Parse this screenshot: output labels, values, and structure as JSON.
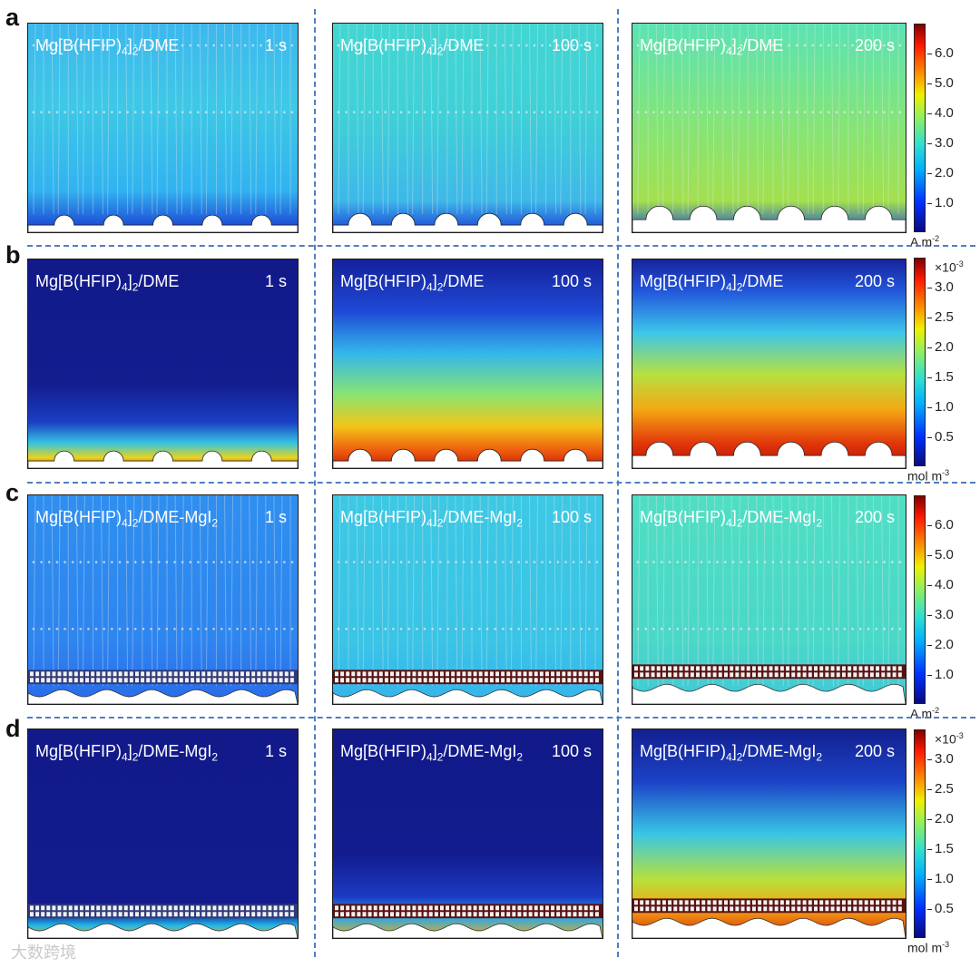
{
  "figure": {
    "rows": [
      {
        "label": "a",
        "field": "current",
        "panels": [
          {
            "title_main": "Mg[B(HFIP)",
            "title_sub1": "4",
            "title_mid": "]",
            "title_sub2": "2",
            "title_tail": "/DME",
            "time": "1 s"
          },
          {
            "title_main": "Mg[B(HFIP)",
            "title_sub1": "4",
            "title_mid": "]",
            "title_sub2": "2",
            "title_tail": "/DME",
            "time": "100 s"
          },
          {
            "title_main": "Mg[B(HFIP)",
            "title_sub1": "4",
            "title_mid": "]",
            "title_sub2": "2",
            "title_tail": "/DME",
            "time": "200 s"
          }
        ],
        "colorbar": {
          "ticks": [
            "6.0",
            "5.0",
            "4.0",
            "3.0",
            "2.0",
            "1.0"
          ],
          "unit_main": "A m",
          "unit_exp": "-2",
          "scale": ""
        }
      },
      {
        "label": "b",
        "field": "concentration",
        "panels": [
          {
            "title_main": "Mg[B(HFIP)",
            "title_sub1": "4",
            "title_mid": "]",
            "title_sub2": "2",
            "title_tail": "/DME",
            "time": "1 s"
          },
          {
            "title_main": "Mg[B(HFIP)",
            "title_sub1": "4",
            "title_mid": "]",
            "title_sub2": "2",
            "title_tail": "/DME",
            "time": "100 s"
          },
          {
            "title_main": "Mg[B(HFIP)",
            "title_sub1": "4",
            "title_mid": "]",
            "title_sub2": "2",
            "title_tail": "/DME",
            "time": "200 s"
          }
        ],
        "colorbar": {
          "ticks": [
            "3.0",
            "2.5",
            "2.0",
            "1.5",
            "1.0",
            "0.5"
          ],
          "unit_main": "mol m",
          "unit_exp": "-3",
          "scale_main": "×10",
          "scale_exp": "-3"
        }
      },
      {
        "label": "c",
        "field": "current",
        "panels": [
          {
            "title_main": "Mg[B(HFIP)",
            "title_sub1": "4",
            "title_mid": "]",
            "title_sub2": "2",
            "title_tail": "/DME-MgI",
            "title_sub3": "2",
            "time": "1 s"
          },
          {
            "title_main": "Mg[B(HFIP)",
            "title_sub1": "4",
            "title_mid": "]",
            "title_sub2": "2",
            "title_tail": "/DME-MgI",
            "title_sub3": "2",
            "time": "100 s"
          },
          {
            "title_main": "Mg[B(HFIP)",
            "title_sub1": "4",
            "title_mid": "]",
            "title_sub2": "2",
            "title_tail": "/DME-MgI",
            "title_sub3": "2",
            "time": "200 s"
          }
        ],
        "colorbar": {
          "ticks": [
            "6.0",
            "5.0",
            "4.0",
            "3.0",
            "2.0",
            "1.0"
          ],
          "unit_main": "A m",
          "unit_exp": "-2",
          "scale": ""
        }
      },
      {
        "label": "d",
        "field": "concentration",
        "panels": [
          {
            "title_main": "Mg[B(HFIP)",
            "title_sub1": "4",
            "title_mid": "]",
            "title_sub2": "2",
            "title_tail": "/DME-MgI",
            "title_sub3": "2",
            "time": "1 s"
          },
          {
            "title_main": "Mg[B(HFIP)",
            "title_sub1": "4",
            "title_mid": "]",
            "title_sub2": "2",
            "title_tail": "/DME-MgI",
            "title_sub3": "2",
            "time": "100 s"
          },
          {
            "title_main": "Mg[B(HFIP)",
            "title_sub1": "4",
            "title_mid": "]",
            "title_sub2": "2",
            "title_tail": "/DME-MgI",
            "title_sub3": "2",
            "time": "200 s"
          }
        ],
        "colorbar": {
          "ticks": [
            "3.0",
            "2.5",
            "2.0",
            "1.5",
            "1.0",
            "0.5"
          ],
          "unit_main": "mol m",
          "unit_exp": "-3",
          "scale_main": "×10",
          "scale_exp": "-3"
        }
      }
    ],
    "colormap": "jet",
    "colors": {
      "divider": "#4f7fc0",
      "jet_low": "#1a1f8c",
      "jet_mid": "#2fd9c8",
      "jet_high": "#8b0000"
    },
    "watermark": "大数跨境"
  }
}
